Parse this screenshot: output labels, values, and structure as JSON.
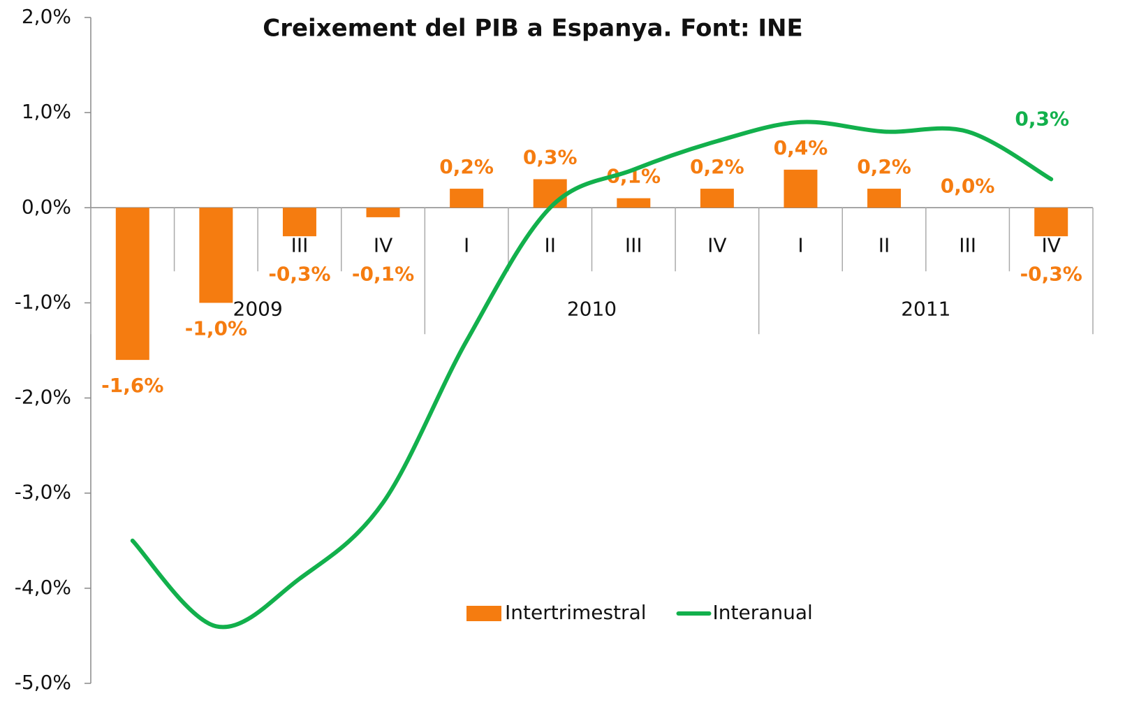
{
  "chart_data": {
    "type": "bar",
    "title": "Creixement del PIB a Espanya. Font: INE",
    "categories": [
      "I",
      "II",
      "III",
      "IV",
      "I",
      "II",
      "III",
      "IV",
      "I",
      "II",
      "III",
      "IV"
    ],
    "groups": [
      "2009",
      "2010",
      "2011"
    ],
    "series": [
      {
        "name": "Intertrimestral",
        "type": "bar",
        "color": "#f57c10",
        "values": [
          -1.6,
          -1.0,
          -0.3,
          -0.1,
          0.2,
          0.3,
          0.1,
          0.2,
          0.4,
          0.2,
          0.0,
          -0.3
        ],
        "value_labels": [
          "-1,6%",
          "-1,0%",
          "-0,3%",
          "-0,1%",
          "0,2%",
          "0,3%",
          "0,1%",
          "0,2%",
          "0,4%",
          "0,2%",
          "0,0%",
          "-0,3%"
        ]
      },
      {
        "name": "Interanual",
        "type": "line",
        "color": "#12b04c",
        "values": [
          -3.5,
          -4.4,
          -3.9,
          -3.1,
          -1.4,
          0.0,
          0.4,
          0.7,
          0.9,
          0.8,
          0.8,
          0.3
        ],
        "value_labels": [
          null,
          null,
          null,
          null,
          null,
          null,
          null,
          null,
          null,
          null,
          null,
          "0,3%"
        ]
      }
    ],
    "ylim": [
      -5,
      2
    ],
    "yticks": [
      {
        "value": -5,
        "label": "-5,0%"
      },
      {
        "value": -4,
        "label": "-4,0%"
      },
      {
        "value": -3,
        "label": "-3,0%"
      },
      {
        "value": -2,
        "label": "-2,0%"
      },
      {
        "value": -1,
        "label": "-1,0%"
      },
      {
        "value": 0,
        "label": "0,0%"
      },
      {
        "value": 1,
        "label": "1,0%"
      },
      {
        "value": 2,
        "label": "2,0%"
      }
    ],
    "legend": "bottom"
  }
}
